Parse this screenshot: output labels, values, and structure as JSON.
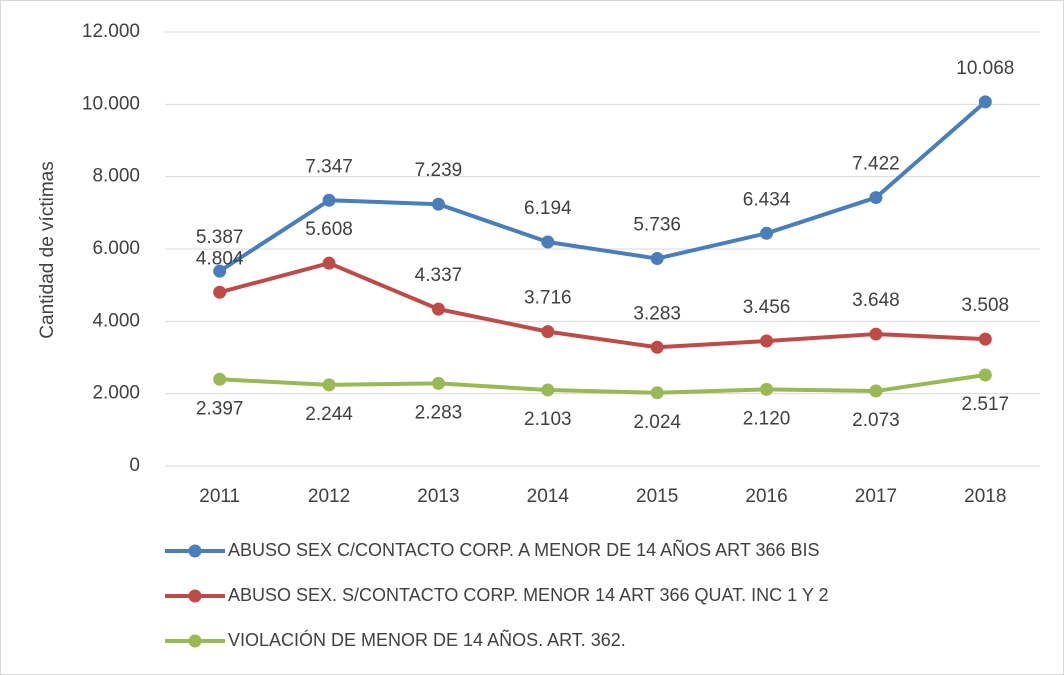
{
  "chart_data": {
    "type": "line",
    "ylabel": "Cantidad de víctimas",
    "categories": [
      "2011",
      "2012",
      "2013",
      "2014",
      "2015",
      "2016",
      "2017",
      "2018"
    ],
    "series": [
      {
        "name": "ABUSO SEX C/CONTACTO CORP. A MENOR DE 14 AÑOS ART 366 BIS",
        "color": "#4a7ebb",
        "values": [
          5387,
          7347,
          7239,
          6194,
          5736,
          6434,
          7422,
          10068
        ],
        "value_labels": [
          "5.387",
          "7.347",
          "7.239",
          "6.194",
          "5.736",
          "6.434",
          "7.422",
          "10.068"
        ]
      },
      {
        "name": "ABUSO SEX. S/CONTACTO CORP. MENOR 14 ART 366 QUAT. INC 1 Y 2",
        "color": "#be4b48",
        "values": [
          4804,
          5608,
          4337,
          3716,
          3283,
          3456,
          3648,
          3508
        ],
        "value_labels": [
          "4.804",
          "5.608",
          "4.337",
          "3.716",
          "3.283",
          "3.456",
          "3.648",
          "3.508"
        ]
      },
      {
        "name": "VIOLACIÓN DE MENOR DE 14 AÑOS. ART. 362.",
        "color": "#98b954",
        "values": [
          2397,
          2244,
          2283,
          2103,
          2024,
          2120,
          2073,
          2517
        ],
        "value_labels": [
          "2.397",
          "2.244",
          "2.283",
          "2.103",
          "2.024",
          "2.120",
          "2.073",
          "2.517"
        ]
      }
    ],
    "ylim": [
      0,
      12000
    ],
    "yticks": [
      0,
      {
        "value": 2000,
        "label": "2.000"
      },
      {
        "value": 4000,
        "label": "4.000"
      },
      {
        "value": 6000,
        "label": "6.000"
      },
      {
        "value": 8000,
        "label": "8.000"
      },
      {
        "value": 10000,
        "label": "10.000"
      },
      {
        "value": 12000,
        "label": "12.000"
      }
    ],
    "grid": true
  }
}
